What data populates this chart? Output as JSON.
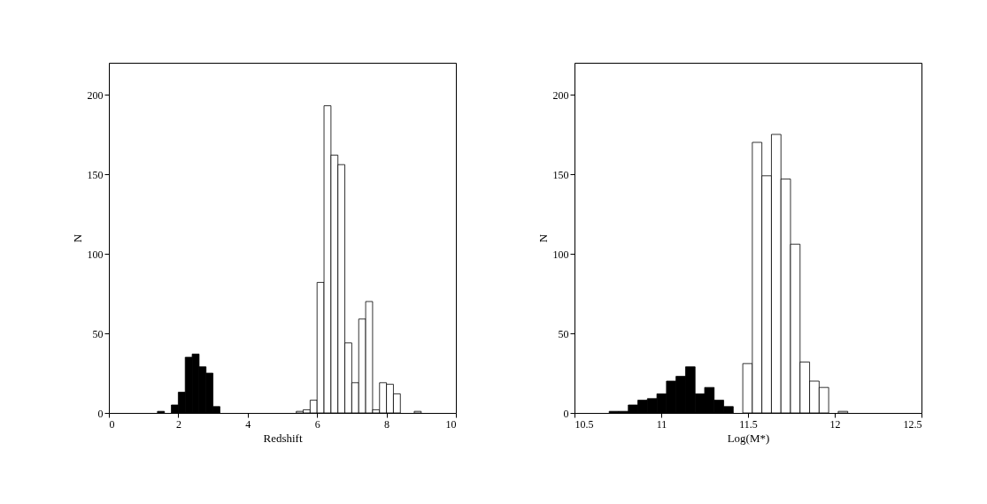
{
  "chart_data": [
    {
      "type": "histogram",
      "xlabel": "Redshift",
      "ylabel": "N",
      "xlim": [
        0,
        10
      ],
      "xticks": [
        0,
        2,
        4,
        6,
        8,
        10
      ],
      "ylim": [
        0,
        220
      ],
      "yticks": [
        0,
        50,
        100,
        150,
        200
      ],
      "grid": false,
      "bins": [
        1.4,
        1.6,
        1.8,
        2.0,
        2.2,
        2.4,
        2.6,
        2.8,
        3.0,
        3.2,
        3.4,
        3.6,
        3.8,
        4.0,
        4.2,
        4.4,
        4.6,
        4.8,
        5.0,
        5.2,
        5.4,
        5.6,
        5.8,
        6.0,
        6.2,
        6.4,
        6.6,
        6.8,
        7.0,
        7.2,
        7.4,
        7.6,
        7.8,
        8.0,
        8.2,
        8.4,
        8.6,
        8.8,
        9.0
      ],
      "series": [
        {
          "color": "#000000",
          "values": [
            1,
            0,
            5,
            13,
            35,
            37,
            29,
            25,
            4,
            null,
            null,
            null,
            null,
            null,
            null,
            null,
            null,
            null,
            null,
            null,
            null,
            null,
            null,
            null,
            null,
            null,
            null,
            null,
            null,
            null,
            null,
            null,
            null,
            null,
            null,
            null,
            null,
            null
          ]
        },
        {
          "color": "#ffffff",
          "values": [
            null,
            null,
            null,
            null,
            null,
            null,
            null,
            null,
            null,
            null,
            null,
            null,
            null,
            null,
            null,
            null,
            null,
            null,
            null,
            null,
            1,
            2,
            8,
            82,
            193,
            162,
            156,
            44,
            19,
            59,
            70,
            2,
            19,
            18,
            12,
            0,
            0,
            1
          ]
        }
      ]
    },
    {
      "type": "histogram",
      "xlabel": "Log(M*)",
      "ylabel": "N",
      "xlim": [
        10.5,
        12.5
      ],
      "xticks": [
        10.5,
        11,
        11.5,
        12,
        12.5
      ],
      "ylim": [
        0,
        220
      ],
      "yticks": [
        0,
        50,
        100,
        150,
        200
      ],
      "grid": false,
      "bins": [
        10.7,
        10.755,
        10.81,
        10.865,
        10.92,
        10.975,
        11.03,
        11.085,
        11.14,
        11.195,
        11.25,
        11.305,
        11.36,
        11.415,
        11.47,
        11.525,
        11.58,
        11.635,
        11.69,
        11.745,
        11.8,
        11.855,
        11.91,
        11.965,
        12.02,
        12.075
      ],
      "series": [
        {
          "color": "#000000",
          "values": [
            1,
            1,
            5,
            8,
            9,
            12,
            20,
            23,
            29,
            12,
            16,
            8,
            4,
            null,
            null,
            null,
            null,
            null,
            null,
            null,
            null,
            null,
            null,
            null,
            null
          ]
        },
        {
          "color": "#ffffff",
          "values": [
            null,
            null,
            null,
            null,
            null,
            null,
            null,
            null,
            null,
            null,
            null,
            null,
            null,
            null,
            31,
            170,
            149,
            175,
            147,
            106,
            32,
            20,
            16,
            0,
            1
          ]
        }
      ]
    }
  ]
}
